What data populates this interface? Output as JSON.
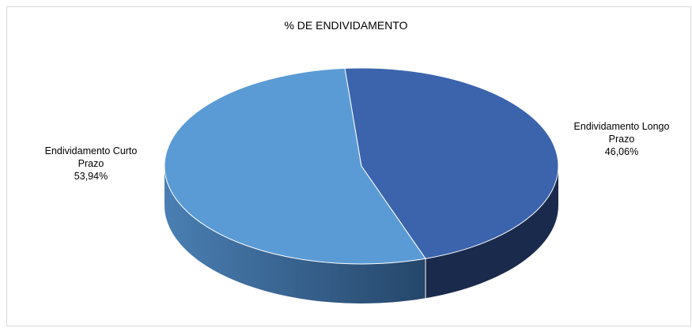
{
  "chart_data": {
    "type": "pie",
    "title": "% DE ENDIVIDAMENTO",
    "categories": [
      "Endividamento Curto Prazo",
      "Endividamento Longo Prazo"
    ],
    "values": [
      53.94,
      46.06
    ],
    "colors": {
      "curto_top": "#5b9bd5",
      "curto_side_light": "#4a7fb3",
      "curto_side_dark": "#25466a",
      "longo_top": "#3b64ad",
      "longo_side": "#1a2a4c"
    },
    "slices": [
      {
        "name_line1": "Endividamento Curto",
        "name_line2": "Prazo",
        "percent_label": "53,94%"
      },
      {
        "name_line1": "Endividamento Longo",
        "name_line2": "Prazo",
        "percent_label": "46,06%"
      }
    ],
    "legend": "none",
    "style": "3d-pie"
  }
}
